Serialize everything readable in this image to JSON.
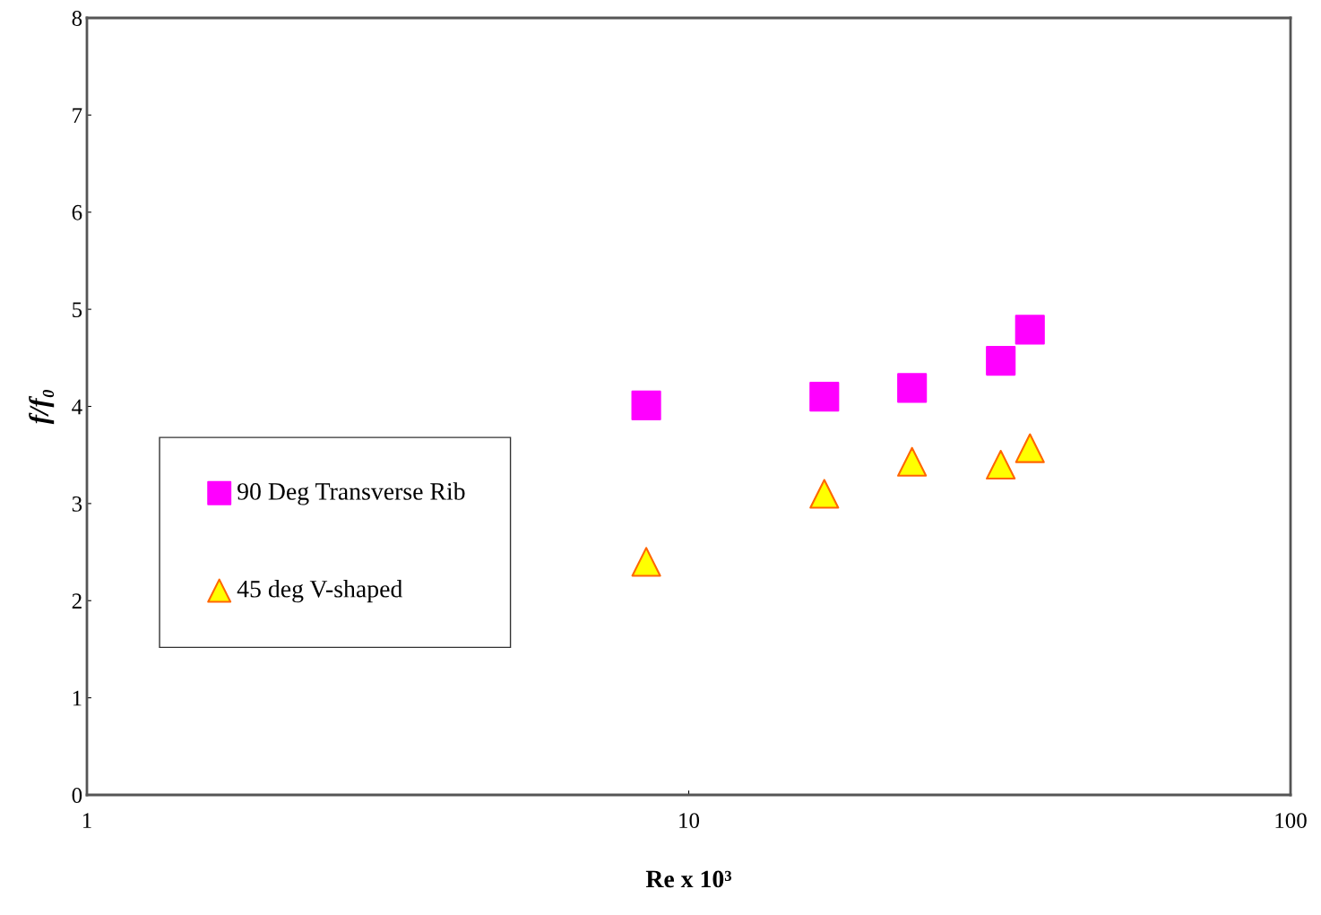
{
  "chart_data": {
    "type": "scatter",
    "xlabel": "Re x 10³",
    "ylabel": "f/f₀",
    "log": "x",
    "xlim": [
      1,
      100
    ],
    "xticks": [
      1,
      10,
      100
    ],
    "ylim": [
      0,
      8
    ],
    "yticks": [
      0,
      1,
      2,
      3,
      4,
      5,
      6,
      7,
      8
    ],
    "grid": false,
    "legend": "left",
    "series": [
      {
        "name": "90 Deg Transverse Rib",
        "color": "#ff00ff",
        "marker": "square",
        "x": [
          8.5,
          16.8,
          23.5,
          33.0,
          36.9
        ],
        "values": [
          4.01,
          4.1,
          4.19,
          4.47,
          4.79
        ]
      },
      {
        "name": "45 deg V-shaped",
        "color": "#ffff00",
        "marker": "triangle",
        "x": [
          8.5,
          16.8,
          23.5,
          33.0,
          36.9
        ],
        "values": [
          2.4,
          3.1,
          3.43,
          3.4,
          3.57
        ]
      }
    ]
  }
}
